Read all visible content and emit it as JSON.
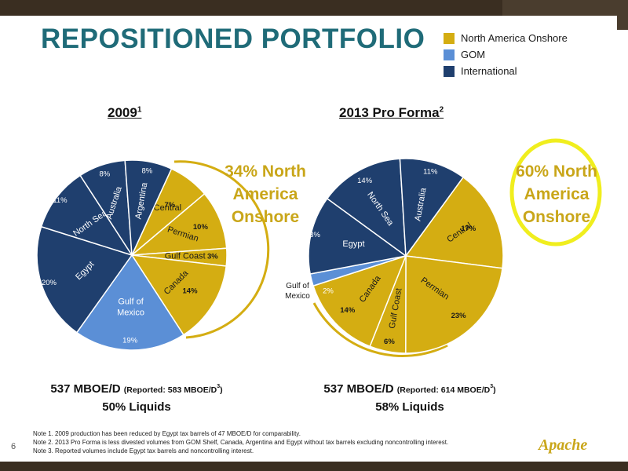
{
  "slide": {
    "title": "REPOSITIONED PORTFOLIO",
    "page_number": "6",
    "logo_text": "Apache",
    "colors": {
      "north_america_onshore": "#d4ad12",
      "gom": "#5b8fd6",
      "international": "#1f3f6e",
      "callout": "#c9a619",
      "title": "#1f6b78"
    }
  },
  "legend": [
    {
      "label": "North America Onshore",
      "color": "#d4ad12"
    },
    {
      "label": "GOM",
      "color": "#5b8fd6"
    },
    {
      "label": "International",
      "color": "#1f3f6e"
    }
  ],
  "charts": [
    {
      "title_main": "2009",
      "title_sup": "1",
      "callout": [
        "34% North",
        "America",
        "Onshore"
      ],
      "summary_main": "537 MBOE/D",
      "summary_reported": "(Reported: 583 MBOE/D",
      "summary_reported_sup": "3",
      "summary_reported_end": ")",
      "summary_liquids": "50% Liquids"
    },
    {
      "title_main": "2013 Pro Forma",
      "title_sup": "2",
      "callout": [
        "60% North",
        "America",
        "Onshore"
      ],
      "summary_main": "537 MBOE/D",
      "summary_reported": "(Reported: 614 MBOE/D",
      "summary_reported_sup": "3",
      "summary_reported_end": ")",
      "summary_liquids": "58% Liquids"
    }
  ],
  "chart_data": [
    {
      "type": "pie",
      "title": "2009",
      "slices": [
        {
          "name": "Central",
          "value": 7,
          "label": "7%",
          "group": "north_america_onshore"
        },
        {
          "name": "Permian",
          "value": 10,
          "label": "10%",
          "group": "north_america_onshore"
        },
        {
          "name": "Gulf Coast",
          "value": 3,
          "label": "3%",
          "group": "north_america_onshore"
        },
        {
          "name": "Canada",
          "value": 14,
          "label": "14%",
          "group": "north_america_onshore"
        },
        {
          "name": "Gulf of Mexico",
          "value": 19,
          "label": "19%",
          "group": "gom"
        },
        {
          "name": "Egypt",
          "value": 20,
          "label": "20%",
          "group": "international"
        },
        {
          "name": "North Sea",
          "value": 11,
          "label": "11%",
          "group": "international"
        },
        {
          "name": "Australia",
          "value": 8,
          "label": "8%",
          "group": "international"
        },
        {
          "name": "Argentina",
          "value": 8,
          "label": "8%",
          "group": "international"
        }
      ]
    },
    {
      "type": "pie",
      "title": "2013 Pro Forma",
      "slices": [
        {
          "name": "Central",
          "value": 17,
          "label": "17%",
          "group": "north_america_onshore"
        },
        {
          "name": "Permian",
          "value": 23,
          "label": "23%",
          "group": "north_america_onshore"
        },
        {
          "name": "Gulf Coast",
          "value": 6,
          "label": "6%",
          "group": "north_america_onshore"
        },
        {
          "name": "Canada",
          "value": 14,
          "label": "14%",
          "group": "north_america_onshore"
        },
        {
          "name": "Gulf of Mexico",
          "value": 2,
          "label": "2%",
          "group": "gom"
        },
        {
          "name": "Egypt",
          "value": 13,
          "label": "13%",
          "group": "international"
        },
        {
          "name": "North Sea",
          "value": 14,
          "label": "14%",
          "group": "international"
        },
        {
          "name": "Australia",
          "value": 11,
          "label": "11%",
          "group": "international"
        }
      ]
    }
  ],
  "notes": [
    "Note 1. 2009 production has been reduced by Egypt tax barrels of 47 MBOE/D for comparability.",
    "Note 2. 2013 Pro Forma is less divested volumes from GOM Shelf, Canada, Argentina and Egypt without tax barrels excluding noncontrolling interest.",
    "Note 3. Reported volumes include Egypt tax barrels and noncontrolling interest."
  ]
}
